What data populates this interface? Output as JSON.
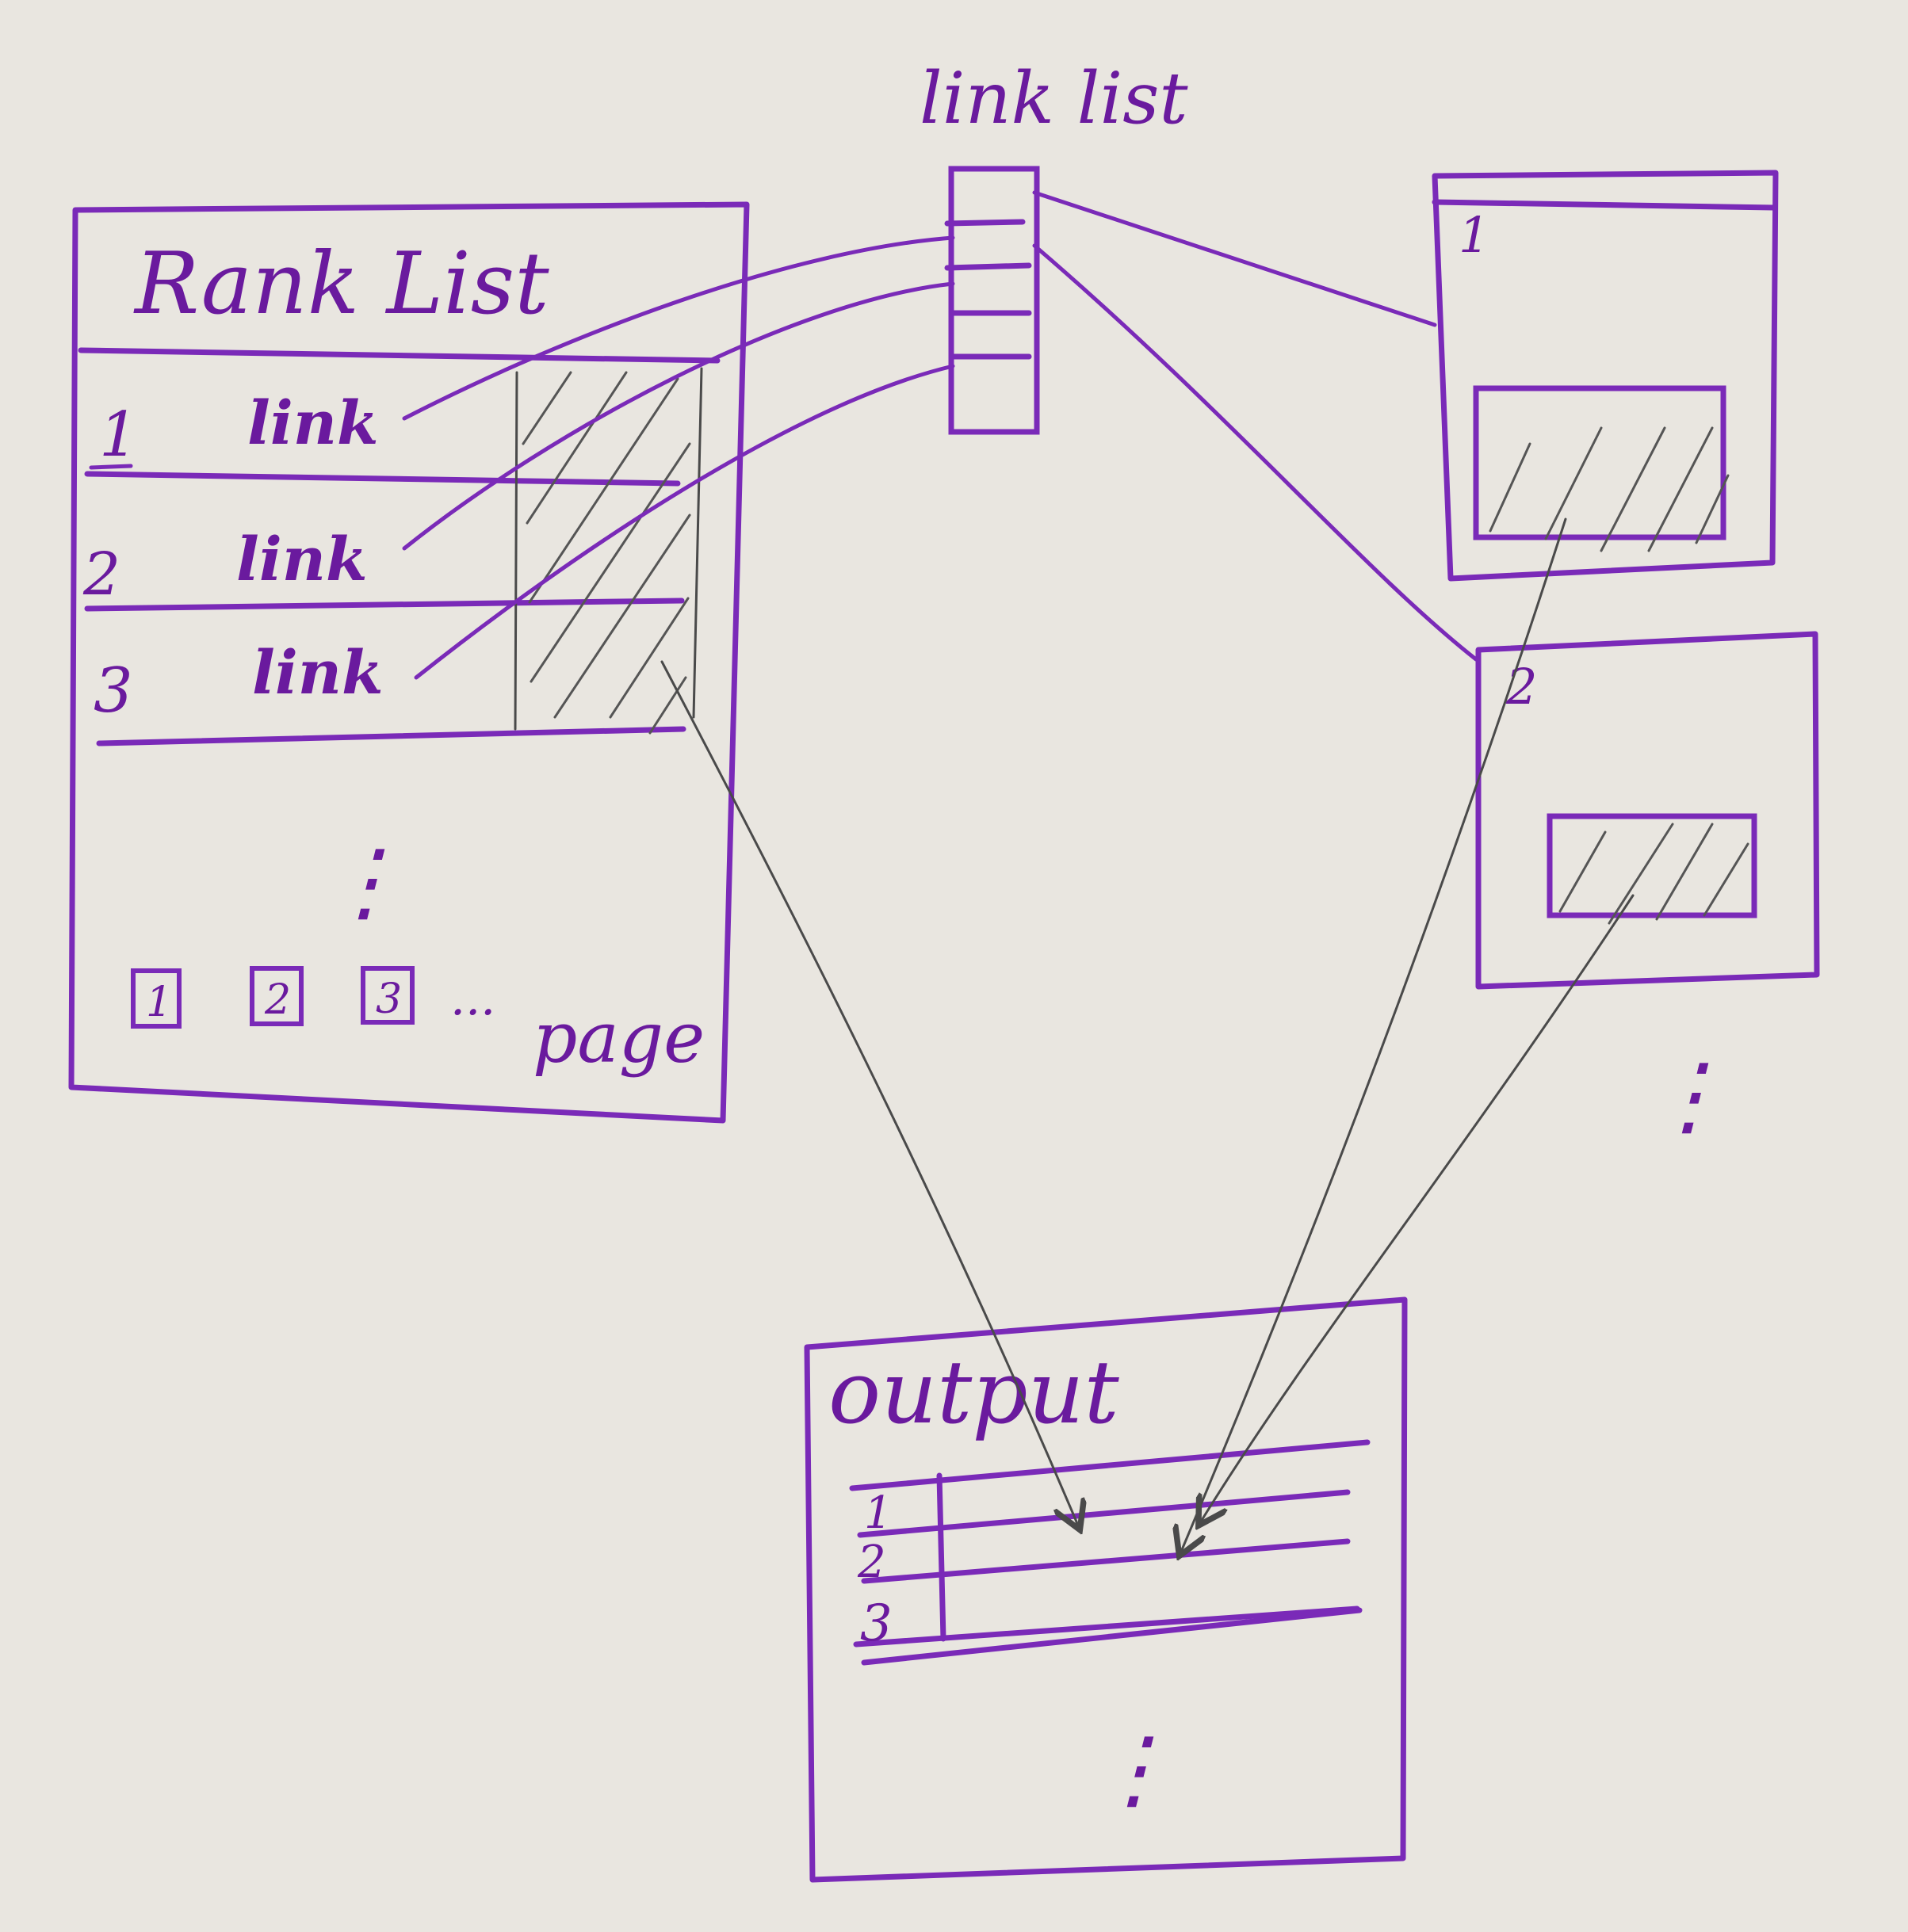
{
  "rank_list": {
    "title": "Rank List",
    "rows": [
      {
        "rank": "1",
        "label": "link"
      },
      {
        "rank": "2",
        "label": "link"
      },
      {
        "rank": "3",
        "label": "link"
      }
    ],
    "ellipsis": "⋮",
    "pagination": {
      "pages": [
        "1",
        "2",
        "3"
      ],
      "more": "...",
      "label": "page"
    }
  },
  "link_list": {
    "title": "link list"
  },
  "detail_pages": [
    {
      "number": "1"
    },
    {
      "number": "2"
    }
  ],
  "detail_ellipsis": "⋮",
  "output": {
    "title": "output",
    "rows": [
      "1",
      "2",
      "3"
    ],
    "ellipsis": "⋮"
  },
  "colors": {
    "ink": "#7a2ab8",
    "pencil": "#4a4a4a",
    "paper": "#e9e6e0"
  }
}
